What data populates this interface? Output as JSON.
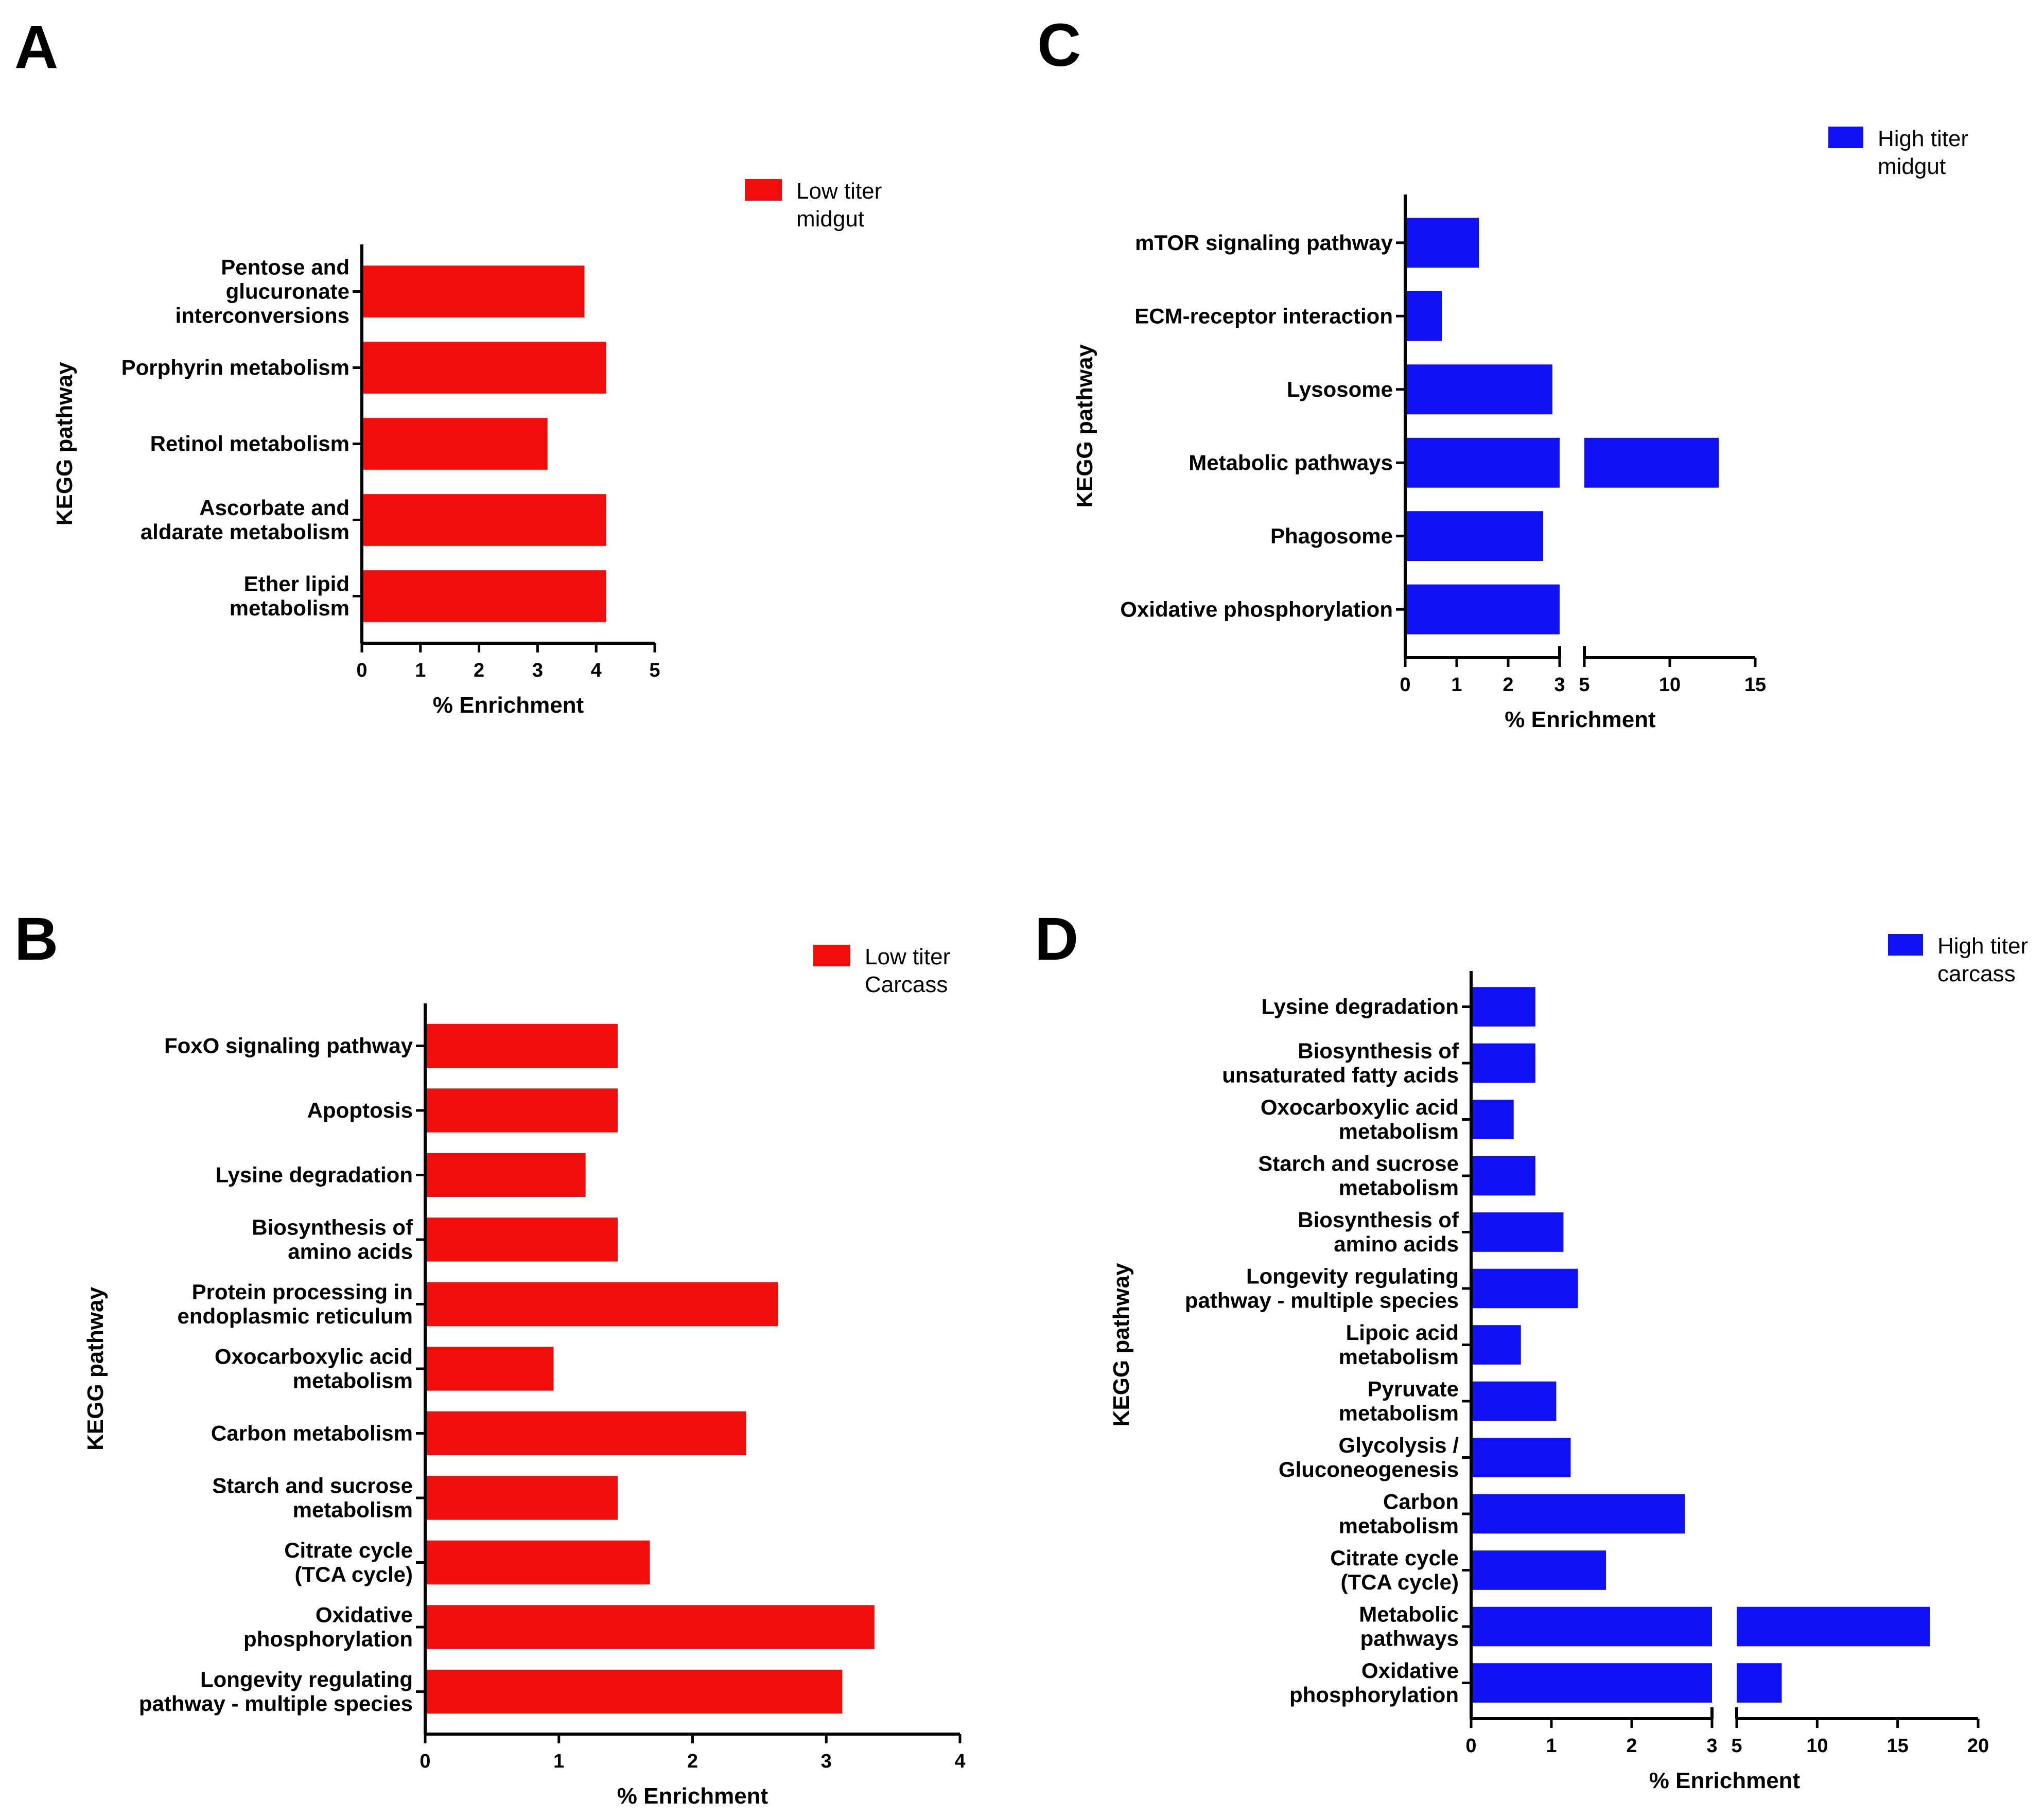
{
  "figure": {
    "panels": [
      "A",
      "B",
      "C",
      "D"
    ]
  },
  "colors": {
    "low_titer": "#f20d0d",
    "high_titer": "#1010f5",
    "axis": "#000000"
  },
  "chart_data": [
    {
      "panel": "A",
      "type": "bar",
      "orientation": "horizontal",
      "legend": [
        "Low titer",
        "midgut"
      ],
      "ylabel": "KEGG pathway",
      "xlabel": "% Enrichment",
      "xlim": [
        0,
        5
      ],
      "xticks": [
        0,
        1,
        2,
        3,
        4,
        5
      ],
      "categories": [
        [
          "Pentose and",
          "glucuronate",
          "interconversions"
        ],
        [
          "Porphyrin metabolism"
        ],
        [
          "Retinol metabolism"
        ],
        [
          "Ascorbate and",
          "aldarate metabolism"
        ],
        [
          "Ether lipid",
          "metabolism"
        ]
      ],
      "values": [
        3.8,
        4.17,
        3.17,
        4.17,
        4.17
      ]
    },
    {
      "panel": "B",
      "type": "bar",
      "orientation": "horizontal",
      "legend": [
        "Low titer",
        "Carcass"
      ],
      "ylabel": "KEGG pathway",
      "xlabel": "% Enrichment",
      "xlim": [
        0,
        4
      ],
      "xticks": [
        0,
        1,
        2,
        3,
        4
      ],
      "categories": [
        [
          "FoxO signaling pathway"
        ],
        [
          "Apoptosis"
        ],
        [
          "Lysine degradation"
        ],
        [
          "Biosynthesis of",
          "amino acids"
        ],
        [
          "Protein processing in",
          "endoplasmic reticulum"
        ],
        [
          "Oxocarboxylic acid",
          "metabolism"
        ],
        [
          "Carbon metabolism"
        ],
        [
          "Starch and sucrose",
          "metabolism"
        ],
        [
          "Citrate cycle",
          "(TCA cycle)"
        ],
        [
          "Oxidative",
          "phosphorylation"
        ],
        [
          "Longevity regulating",
          "pathway - multiple species"
        ]
      ],
      "values": [
        1.44,
        1.44,
        1.2,
        1.44,
        2.64,
        0.96,
        2.4,
        1.44,
        1.68,
        3.36,
        3.12
      ]
    },
    {
      "panel": "C",
      "type": "bar",
      "orientation": "horizontal",
      "broken_axis": {
        "break_from": 3,
        "break_to": 5
      },
      "legend": [
        "High titer",
        "midgut"
      ],
      "ylabel": "KEGG pathway",
      "xlabel": "% Enrichment",
      "xlim": [
        0,
        15
      ],
      "xticks": [
        0,
        1,
        2,
        3,
        5,
        10,
        15
      ],
      "categories": [
        [
          "mTOR signaling pathway"
        ],
        [
          "ECM-receptor interaction"
        ],
        [
          "Lysosome"
        ],
        [
          "Metabolic pathways"
        ],
        [
          "Phagosome"
        ],
        [
          "Oxidative phosphorylation"
        ]
      ],
      "values": [
        1.43,
        0.71,
        2.86,
        12.86,
        2.68,
        3.0
      ]
    },
    {
      "panel": "D",
      "type": "bar",
      "orientation": "horizontal",
      "broken_axis": {
        "break_from": 3,
        "break_to": 5
      },
      "legend": [
        "High titer",
        "carcass"
      ],
      "ylabel": "KEGG pathway",
      "xlabel": "% Enrichment",
      "xlim": [
        0,
        20
      ],
      "xticks": [
        0,
        1,
        2,
        3,
        5,
        10,
        15,
        20
      ],
      "categories": [
        [
          "Lysine degradation"
        ],
        [
          "Biosynthesis of",
          "unsaturated fatty acids"
        ],
        [
          "Oxocarboxylic acid",
          "metabolism"
        ],
        [
          "Starch and sucrose",
          "metabolism"
        ],
        [
          "Biosynthesis of",
          "amino acids"
        ],
        [
          "Longevity regulating",
          "pathway - multiple species"
        ],
        [
          "Lipoic acid",
          "metabolism"
        ],
        [
          "Pyruvate",
          "metabolism"
        ],
        [
          "Glycolysis /",
          "Gluconeogenesis"
        ],
        [
          "Carbon",
          "metabolism"
        ],
        [
          "Citrate cycle",
          "(TCA cycle)"
        ],
        [
          "Metabolic",
          "pathways"
        ],
        [
          "Oxidative",
          "phosphorylation"
        ]
      ],
      "values": [
        0.8,
        0.8,
        0.53,
        0.8,
        1.15,
        1.33,
        0.62,
        1.06,
        1.24,
        2.66,
        1.68,
        17.0,
        7.8
      ]
    }
  ]
}
